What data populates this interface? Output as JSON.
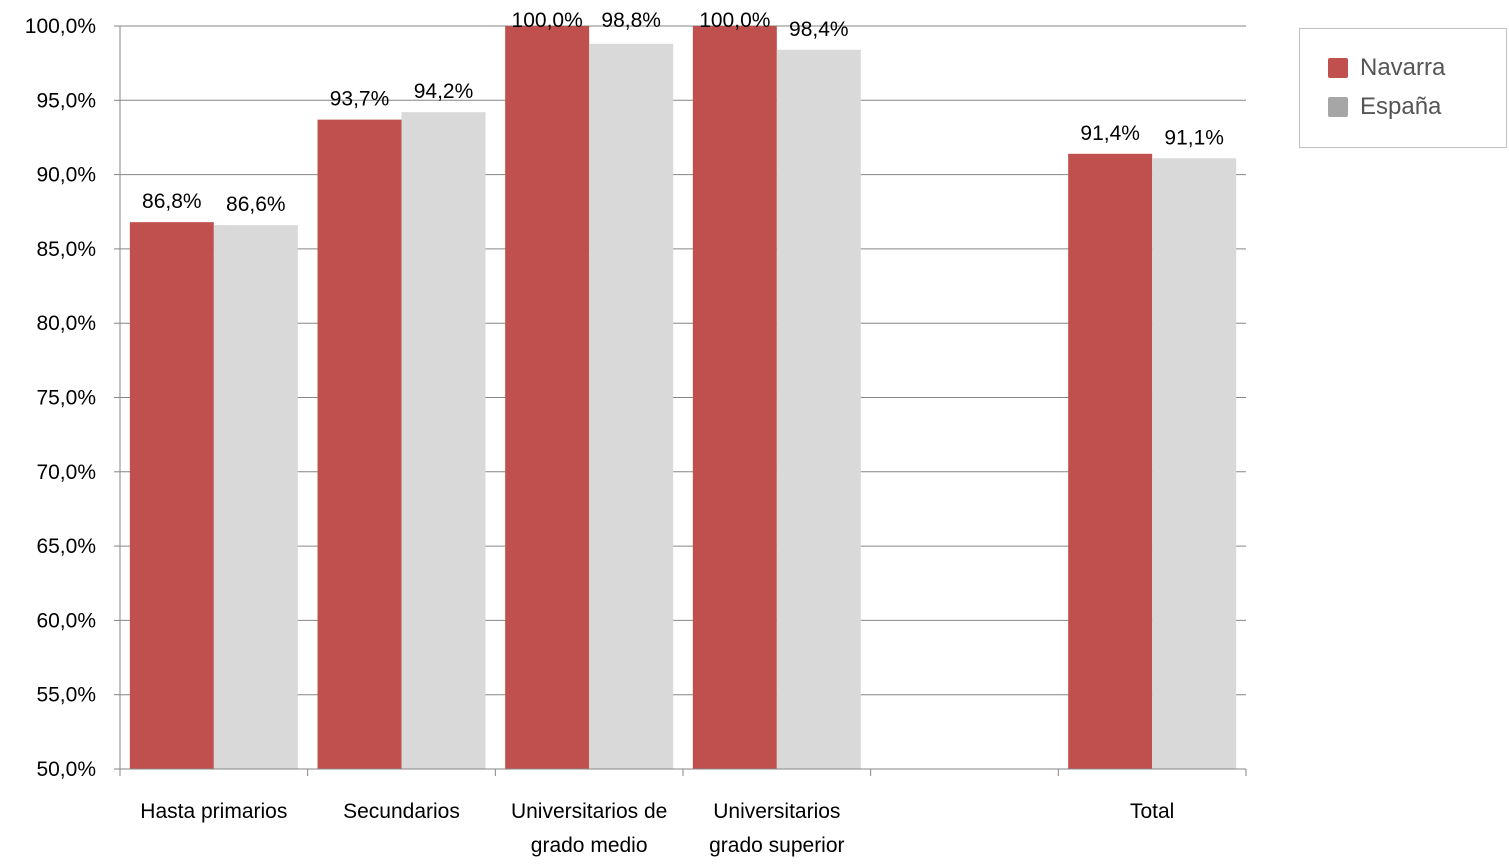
{
  "chart_data": {
    "type": "bar",
    "categories": [
      [
        "Hasta primarios"
      ],
      [
        "Secundarios"
      ],
      [
        "Universitarios de",
        "grado medio"
      ],
      [
        "Universitarios",
        "grado superior"
      ],
      [
        ""
      ],
      [
        "Total"
      ]
    ],
    "series": [
      {
        "name": "Navarra",
        "color": "#c0504d",
        "values": [
          86.8,
          93.7,
          100.0,
          100.0,
          null,
          91.4
        ],
        "labels": [
          "86,8%",
          "93,7%",
          "100,0%",
          "100,0%",
          "",
          "91,4%"
        ]
      },
      {
        "name": "España",
        "color": "#d9d9d9",
        "legend_color": "#a6a6a6",
        "values": [
          86.6,
          94.2,
          98.8,
          98.4,
          null,
          91.1
        ],
        "labels": [
          "86,6%",
          "94,2%",
          "98,8%",
          "98,4%",
          "",
          "91,1%"
        ]
      }
    ],
    "ylim": [
      50,
      100
    ],
    "yticks": [
      50,
      55,
      60,
      65,
      70,
      75,
      80,
      85,
      90,
      95,
      100
    ],
    "ytick_labels": [
      "50,0%",
      "55,0%",
      "60,0%",
      "65,0%",
      "70,0%",
      "75,0%",
      "80,0%",
      "85,0%",
      "90,0%",
      "95,0%",
      "100,0%"
    ],
    "grid": true,
    "legend_position": "top-right",
    "title": "",
    "xlabel": "",
    "ylabel": ""
  }
}
